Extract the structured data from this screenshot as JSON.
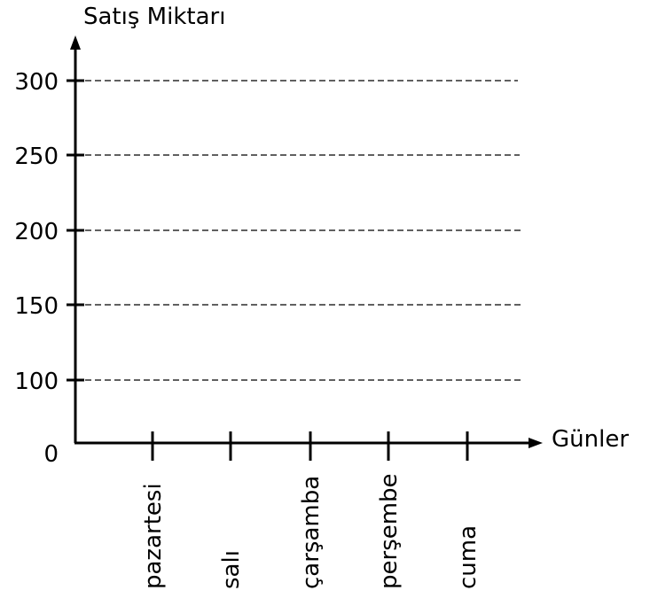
{
  "chart_data": {
    "type": "line",
    "title": "",
    "ylabel": "Satış Miktarı",
    "xlabel": "Günler",
    "categories": [
      "pazartesi",
      "salı",
      "çarşamba",
      "perşembe",
      "cuma"
    ],
    "y_ticks": [
      0,
      100,
      150,
      200,
      250,
      300
    ],
    "gridlines": [
      100,
      150,
      200,
      250,
      300
    ],
    "grid": "dashed horizontal",
    "ylim": [
      0,
      300
    ],
    "series": [],
    "colors": {
      "axis": "#000000",
      "grid": "#000000",
      "background": "#ffffff"
    }
  }
}
